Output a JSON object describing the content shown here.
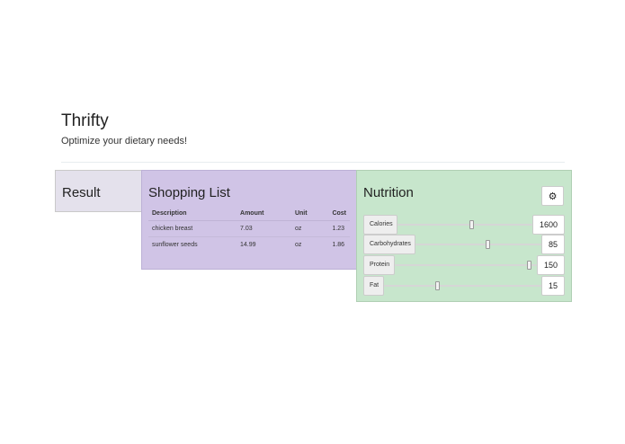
{
  "header": {
    "title": "Thrifty",
    "subtitle": "Optimize your dietary needs!"
  },
  "result": {
    "title": "Result"
  },
  "shopping_list": {
    "title": "Shopping List",
    "columns": [
      "Description",
      "Amount",
      "Unit",
      "Cost"
    ],
    "rows": [
      [
        "chicken breast",
        "7.03",
        "oz",
        "1.23"
      ],
      [
        "sunflower seeds",
        "14.99",
        "oz",
        "1.86"
      ]
    ]
  },
  "nutrition": {
    "title": "Nutrition",
    "settings_icon": "gear-icon",
    "items": [
      {
        "label": "Calories",
        "value": "1600",
        "slider_level": 0.55
      },
      {
        "label": "Carbohydrates",
        "value": "85",
        "slider_level": 0.58
      },
      {
        "label": "Protein",
        "value": "150",
        "slider_level": 0.97
      },
      {
        "label": "Fat",
        "value": "15",
        "slider_level": 0.33
      }
    ]
  },
  "colors": {
    "result_bg": "#e4e1ec",
    "shopping_bg": "#d0c4e6",
    "nutrition_bg": "#c7e6cc"
  }
}
